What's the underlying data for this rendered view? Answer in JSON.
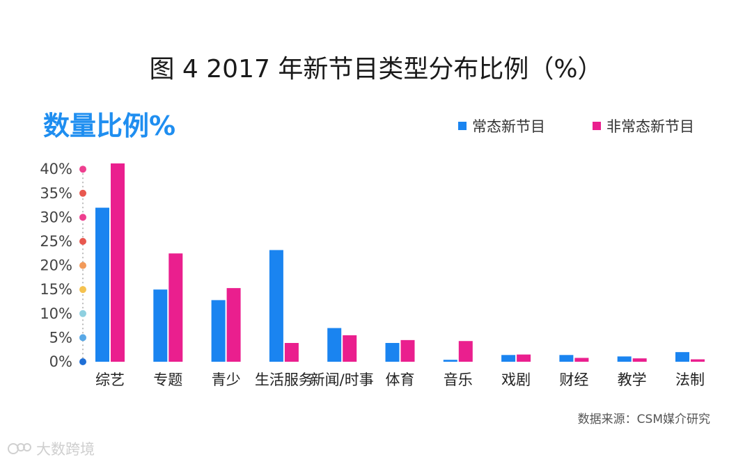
{
  "chart_data": {
    "type": "bar",
    "title": "图 4  2017 年新节目类型分布比例（%）",
    "subtitle": "数量比例%",
    "categories": [
      "综艺",
      "专题",
      "青少",
      "生活服务",
      "新闻/时事",
      "体育",
      "音乐",
      "戏剧",
      "财经",
      "教学",
      "法制"
    ],
    "series": [
      {
        "name": "常态新节目",
        "color": "#1a84f0",
        "values": [
          32.0,
          15.0,
          12.8,
          23.2,
          7.0,
          3.9,
          0.4,
          1.4,
          1.4,
          1.1,
          2.0
        ]
      },
      {
        "name": "非常态新节目",
        "color": "#ea1f8e",
        "values": [
          41.2,
          22.5,
          15.3,
          3.9,
          5.5,
          4.5,
          4.3,
          1.5,
          0.8,
          0.7,
          0.5
        ]
      }
    ],
    "yticks": [
      "0%",
      "5%",
      "10%",
      "15%",
      "20%",
      "25%",
      "30%",
      "35%",
      "40%"
    ],
    "ytick_values": [
      0,
      5,
      10,
      15,
      20,
      25,
      30,
      35,
      40
    ],
    "tick_dot_colors": [
      "#1f6fd6",
      "#59a8e6",
      "#8fd0e0",
      "#f5c24f",
      "#f29a5a",
      "#e8584f",
      "#ee3f8f",
      "#e8584f",
      "#ee3f8f"
    ],
    "ylim": [
      0,
      42
    ],
    "legend_position": "top-right",
    "grid": false,
    "xlabel": "",
    "ylabel": ""
  },
  "source": "数据来源：CSM媒介研究",
  "watermark": "大数跨境"
}
